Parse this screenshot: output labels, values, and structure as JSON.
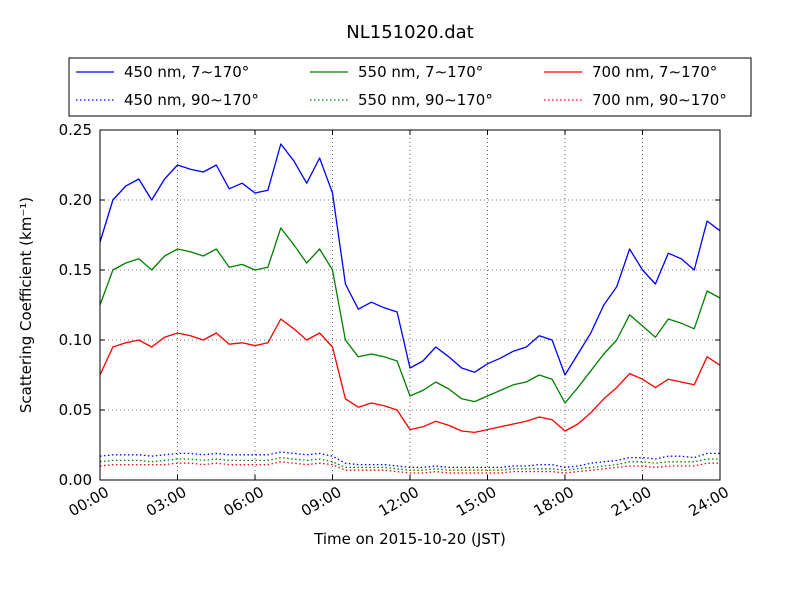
{
  "chart_data": {
    "type": "line",
    "title": "NL151020.dat",
    "xlabel": "Time on 2015-10-20 (JST)",
    "ylabel": "Scattering Coefficient (km⁻¹)",
    "xlim": [
      0,
      24
    ],
    "ylim": [
      0,
      0.25
    ],
    "xticks": [
      0,
      3,
      6,
      9,
      12,
      15,
      18,
      21,
      24
    ],
    "xtick_labels": [
      "00:00",
      "03:00",
      "06:00",
      "09:00",
      "12:00",
      "15:00",
      "18:00",
      "21:00",
      "24:00"
    ],
    "yticks": [
      0,
      0.05,
      0.1,
      0.15,
      0.2,
      0.25
    ],
    "ytick_labels": [
      "0.00",
      "0.05",
      "0.10",
      "0.15",
      "0.20",
      "0.25"
    ],
    "grid": true,
    "legend_position": "top",
    "x": [
      0,
      0.5,
      1,
      1.5,
      2,
      2.5,
      3,
      3.5,
      4,
      4.5,
      5,
      5.5,
      6,
      6.5,
      7,
      7.5,
      8,
      8.5,
      9,
      9.5,
      10,
      10.5,
      11,
      11.5,
      12,
      12.5,
      13,
      13.5,
      14,
      14.5,
      15,
      15.5,
      16,
      16.5,
      17,
      17.5,
      18,
      18.5,
      19,
      19.5,
      20,
      20.5,
      21,
      21.5,
      22,
      22.5,
      23,
      23.5,
      24
    ],
    "series": [
      {
        "name": "450 nm, 7∼170°",
        "color": "#0000ff",
        "style": "solid",
        "values": [
          0.17,
          0.2,
          0.21,
          0.215,
          0.2,
          0.215,
          0.225,
          0.222,
          0.22,
          0.225,
          0.208,
          0.212,
          0.205,
          0.207,
          0.24,
          0.228,
          0.212,
          0.23,
          0.205,
          0.14,
          0.122,
          0.127,
          0.123,
          0.12,
          0.08,
          0.085,
          0.095,
          0.088,
          0.08,
          0.077,
          0.083,
          0.087,
          0.092,
          0.095,
          0.103,
          0.1,
          0.075,
          0.09,
          0.105,
          0.125,
          0.138,
          0.165,
          0.15,
          0.14,
          0.162,
          0.158,
          0.15,
          0.185,
          0.178
        ]
      },
      {
        "name": "550 nm, 7∼170°",
        "color": "#008000",
        "style": "solid",
        "values": [
          0.125,
          0.15,
          0.155,
          0.158,
          0.15,
          0.16,
          0.165,
          0.163,
          0.16,
          0.165,
          0.152,
          0.154,
          0.15,
          0.152,
          0.18,
          0.168,
          0.155,
          0.165,
          0.15,
          0.1,
          0.088,
          0.09,
          0.088,
          0.085,
          0.06,
          0.064,
          0.07,
          0.065,
          0.058,
          0.056,
          0.06,
          0.064,
          0.068,
          0.07,
          0.075,
          0.072,
          0.055,
          0.066,
          0.078,
          0.09,
          0.1,
          0.118,
          0.11,
          0.102,
          0.115,
          0.112,
          0.108,
          0.135,
          0.13
        ]
      },
      {
        "name": "700 nm, 7∼170°",
        "color": "#ff0000",
        "style": "solid",
        "values": [
          0.075,
          0.095,
          0.098,
          0.1,
          0.095,
          0.102,
          0.105,
          0.103,
          0.1,
          0.105,
          0.097,
          0.098,
          0.096,
          0.098,
          0.115,
          0.108,
          0.1,
          0.105,
          0.095,
          0.058,
          0.052,
          0.055,
          0.053,
          0.05,
          0.036,
          0.038,
          0.042,
          0.039,
          0.035,
          0.034,
          0.036,
          0.038,
          0.04,
          0.042,
          0.045,
          0.043,
          0.035,
          0.04,
          0.048,
          0.058,
          0.066,
          0.076,
          0.072,
          0.066,
          0.072,
          0.07,
          0.068,
          0.088,
          0.082
        ]
      },
      {
        "name": "450 nm, 90∼170°",
        "color": "#0000ff",
        "style": "dotted",
        "values": [
          0.017,
          0.018,
          0.018,
          0.018,
          0.017,
          0.018,
          0.019,
          0.019,
          0.018,
          0.019,
          0.018,
          0.018,
          0.018,
          0.018,
          0.02,
          0.019,
          0.018,
          0.019,
          0.017,
          0.012,
          0.011,
          0.011,
          0.011,
          0.01,
          0.009,
          0.009,
          0.01,
          0.009,
          0.009,
          0.009,
          0.009,
          0.009,
          0.01,
          0.01,
          0.011,
          0.011,
          0.009,
          0.01,
          0.012,
          0.013,
          0.014,
          0.016,
          0.016,
          0.015,
          0.017,
          0.017,
          0.016,
          0.019,
          0.019
        ]
      },
      {
        "name": "550 nm, 90∼170°",
        "color": "#008000",
        "style": "dotted",
        "values": [
          0.013,
          0.014,
          0.014,
          0.014,
          0.013,
          0.014,
          0.015,
          0.015,
          0.014,
          0.015,
          0.014,
          0.014,
          0.014,
          0.014,
          0.016,
          0.015,
          0.014,
          0.015,
          0.013,
          0.009,
          0.009,
          0.009,
          0.009,
          0.008,
          0.007,
          0.007,
          0.008,
          0.007,
          0.007,
          0.007,
          0.007,
          0.007,
          0.008,
          0.008,
          0.008,
          0.008,
          0.007,
          0.008,
          0.009,
          0.01,
          0.011,
          0.013,
          0.013,
          0.012,
          0.013,
          0.013,
          0.013,
          0.015,
          0.015
        ]
      },
      {
        "name": "700 nm, 90∼170°",
        "color": "#ff0000",
        "style": "dotted",
        "values": [
          0.01,
          0.011,
          0.011,
          0.011,
          0.011,
          0.011,
          0.012,
          0.012,
          0.011,
          0.012,
          0.011,
          0.011,
          0.011,
          0.011,
          0.013,
          0.012,
          0.011,
          0.012,
          0.011,
          0.007,
          0.007,
          0.007,
          0.007,
          0.006,
          0.005,
          0.005,
          0.006,
          0.005,
          0.005,
          0.005,
          0.005,
          0.005,
          0.006,
          0.006,
          0.006,
          0.006,
          0.005,
          0.006,
          0.007,
          0.008,
          0.009,
          0.01,
          0.01,
          0.009,
          0.01,
          0.01,
          0.01,
          0.012,
          0.012
        ]
      }
    ]
  }
}
